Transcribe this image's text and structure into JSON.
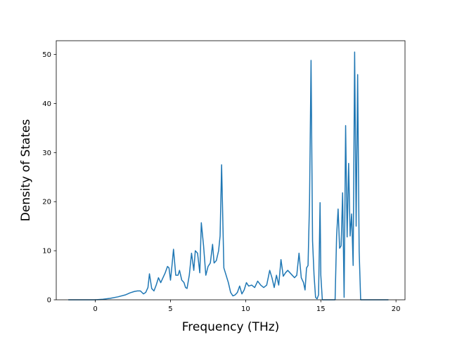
{
  "chart_data": {
    "type": "line",
    "xlabel": "Frequency (THz)",
    "ylabel": "Density of States",
    "xlim": [
      -2.6,
      20.6
    ],
    "ylim": [
      0,
      52.8
    ],
    "xticks": [
      0,
      5,
      10,
      15,
      20
    ],
    "yticks": [
      0,
      10,
      20,
      30,
      40,
      50
    ],
    "grid": false,
    "series": [
      {
        "color": "#1f77b4",
        "x": [
          -1.8,
          -1.0,
          -0.5,
          0.0,
          0.5,
          1.0,
          1.5,
          2.0,
          2.3,
          2.6,
          2.8,
          3.0,
          3.1,
          3.2,
          3.35,
          3.5,
          3.6,
          3.75,
          3.9,
          4.05,
          4.2,
          4.35,
          4.5,
          4.65,
          4.8,
          4.9,
          5.0,
          5.1,
          5.2,
          5.35,
          5.5,
          5.6,
          5.75,
          5.9,
          6.0,
          6.1,
          6.25,
          6.4,
          6.55,
          6.65,
          6.8,
          6.95,
          7.05,
          7.2,
          7.35,
          7.5,
          7.65,
          7.8,
          7.9,
          8.05,
          8.2,
          8.3,
          8.4,
          8.55,
          8.7,
          8.85,
          9.0,
          9.15,
          9.3,
          9.45,
          9.6,
          9.75,
          9.9,
          10.05,
          10.2,
          10.4,
          10.6,
          10.8,
          11.0,
          11.2,
          11.4,
          11.6,
          11.75,
          11.9,
          12.05,
          12.2,
          12.35,
          12.5,
          12.65,
          12.8,
          12.95,
          13.1,
          13.25,
          13.4,
          13.55,
          13.7,
          13.85,
          13.95,
          14.05,
          14.15,
          14.25,
          14.35,
          14.45,
          14.55,
          14.65,
          14.75,
          14.85,
          14.95,
          15.0,
          15.1,
          15.2,
          15.4,
          15.6,
          15.8,
          15.95,
          16.05,
          16.15,
          16.25,
          16.35,
          16.45,
          16.55,
          16.65,
          16.75,
          16.85,
          16.95,
          17.05,
          17.15,
          17.25,
          17.35,
          17.45,
          17.55,
          17.65,
          17.75,
          17.85,
          18.0,
          18.5,
          19.0,
          19.5
        ],
        "y": [
          0,
          0,
          0,
          0,
          0.1,
          0.3,
          0.6,
          1.0,
          1.4,
          1.7,
          1.8,
          1.8,
          1.5,
          1.2,
          1.5,
          2.5,
          5.3,
          2.3,
          1.8,
          3.0,
          4.5,
          3.5,
          4.5,
          5.5,
          6.8,
          6.5,
          4.0,
          7.0,
          10.3,
          5.0,
          5.0,
          6.0,
          4.0,
          3.5,
          2.5,
          2.3,
          5.0,
          9.5,
          6.0,
          10.0,
          9.5,
          5.5,
          15.7,
          11.0,
          5.0,
          6.8,
          7.5,
          11.3,
          7.5,
          8.0,
          10.0,
          13.0,
          27.5,
          6.5,
          5.0,
          3.5,
          1.5,
          0.8,
          1.0,
          1.5,
          2.8,
          1.2,
          2.0,
          3.5,
          2.8,
          3.0,
          2.5,
          3.8,
          3.0,
          2.5,
          3.0,
          6.0,
          4.5,
          2.5,
          5.0,
          3.0,
          8.2,
          4.8,
          5.5,
          6.0,
          5.5,
          5.0,
          4.5,
          5.0,
          9.5,
          4.5,
          3.5,
          2.0,
          6.5,
          7.0,
          20.0,
          48.8,
          12.0,
          5.0,
          0.5,
          0.2,
          1.0,
          19.8,
          5.0,
          0,
          0,
          0,
          0,
          0,
          0,
          13.0,
          18.5,
          10.5,
          11.0,
          21.8,
          0.5,
          35.5,
          12.8,
          27.8,
          13.0,
          17.5,
          7.0,
          50.5,
          15.0,
          45.9,
          10.0,
          0,
          0,
          0,
          0,
          0,
          0,
          0
        ]
      }
    ]
  }
}
